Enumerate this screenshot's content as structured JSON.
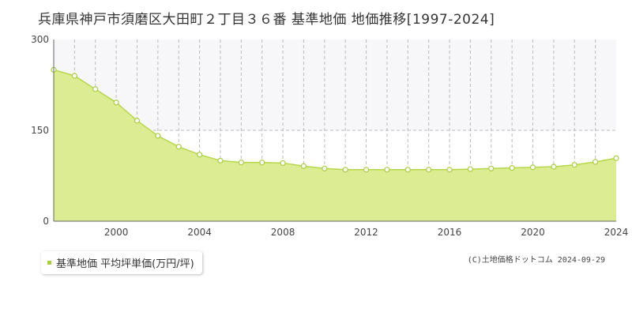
{
  "title": "兵庫県神戸市須磨区大田町２丁目３６番 基準地価 地価推移[1997-2024]",
  "legend_label": "基準地価 平均坪単価(万円/坪)",
  "credit": "(C)土地価格ドットコム 2024-09-29",
  "colors": {
    "fill": "#dcec93",
    "line": "#b5d84a",
    "marker": "#a8cf3c",
    "grid": "#bbbbbb"
  },
  "chart_data": {
    "type": "area",
    "x": [
      1997,
      1998,
      1999,
      2000,
      2001,
      2002,
      2003,
      2004,
      2005,
      2006,
      2007,
      2008,
      2009,
      2010,
      2011,
      2012,
      2013,
      2014,
      2015,
      2016,
      2017,
      2018,
      2019,
      2020,
      2021,
      2022,
      2023,
      2024
    ],
    "series": [
      {
        "name": "基準地価 平均坪単価(万円/坪)",
        "values": [
          250,
          240,
          218,
          196,
          166,
          141,
          123,
          110,
          100,
          97,
          97,
          96,
          91,
          87,
          85,
          85,
          85,
          85,
          85,
          85,
          86,
          87,
          88,
          89,
          90,
          93,
          98,
          104
        ]
      }
    ],
    "xlim": [
      1997,
      2024
    ],
    "ylim": [
      0,
      300
    ],
    "y_ticks": [
      "0",
      "150",
      "300"
    ],
    "x_ticks": [
      "2000",
      "2004",
      "2008",
      "2012",
      "2016",
      "2020",
      "2024"
    ],
    "grid": true,
    "legend_position": "bottom-left"
  }
}
